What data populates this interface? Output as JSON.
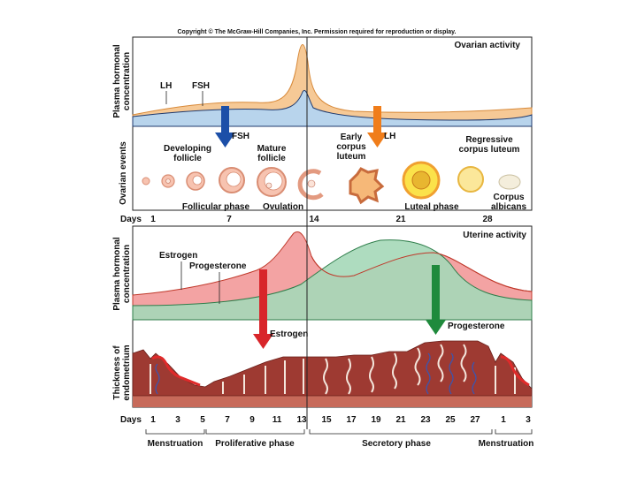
{
  "copyright": "Copyright © The McGraw-Hill Companies, Inc. Permission required for reproduction or display.",
  "colors": {
    "lh_fill": "#f6c996",
    "fsh_fill": "#b8d4ec",
    "estrogen_fill": "#f3a3a3",
    "progesterone_fill": "#a5d8b8",
    "fsh_arrow": "#1c4fa8",
    "lh_arrow": "#f07d1a",
    "estrogen_arrow": "#d8252a",
    "progesterone_arrow": "#1f8a3c",
    "endometrium": "#9e3a32"
  },
  "ovarian": {
    "panel_label": "Ovarian activity",
    "y_label_line1": "Plasma hormonal",
    "y_label_line2": "concentration",
    "events_label": "Ovarian events",
    "lh_label": "LH",
    "fsh_label": "FSH",
    "fsh_arrow_label": "FSH",
    "lh_arrow_label": "LH",
    "developing_follicle": [
      "Developing",
      "follicle"
    ],
    "mature_follicle": [
      "Mature",
      "follicle"
    ],
    "early_corpus_luteum": [
      "Early",
      "corpus",
      "luteum"
    ],
    "regressive_corpus_luteum": [
      "Regressive",
      "corpus luteum"
    ],
    "corpus_albicans": [
      "Corpus",
      "albicans"
    ],
    "follicular_phase": "Follicular phase",
    "ovulation": "Ovulation",
    "luteal_phase": "Luteal phase",
    "days_label": "Days",
    "days": [
      "1",
      "7",
      "14",
      "21",
      "28"
    ]
  },
  "uterine": {
    "panel_label": "Uterine activity",
    "y_label_line1": "Plasma hormonal",
    "y_label_line2": "concentration",
    "estrogen_label": "Estrogen",
    "progesterone_label": "Progesterone",
    "estrogen_arrow_label": "Estrogen",
    "progesterone_arrow_label": "Progesterone",
    "thickness_line1": "Thickness of",
    "thickness_line2": "endometrium",
    "days_label": "Days",
    "days": [
      "1",
      "3",
      "5",
      "7",
      "9",
      "11",
      "13",
      "15",
      "17",
      "19",
      "21",
      "23",
      "25",
      "27",
      "1",
      "3"
    ],
    "phases": [
      "Menstruation",
      "Proliferative phase",
      "Secretory phase",
      "Menstruation"
    ]
  }
}
